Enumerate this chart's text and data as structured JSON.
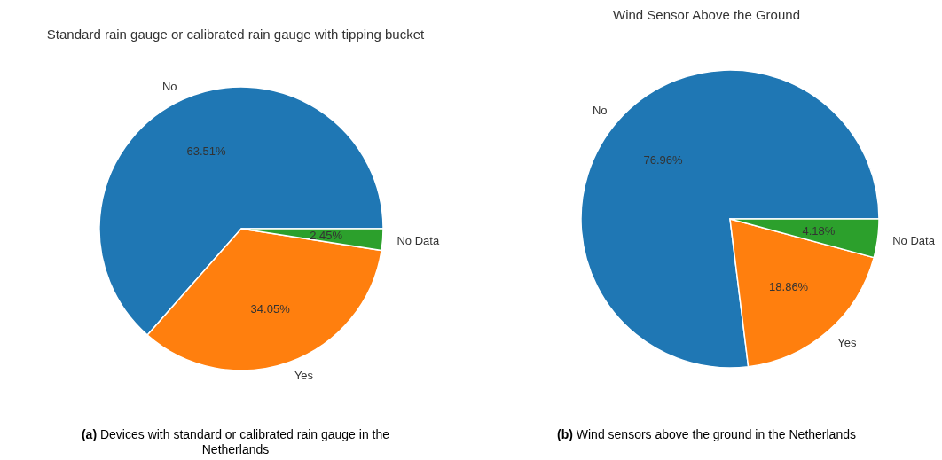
{
  "chart_data": [
    {
      "type": "pie",
      "title": "Standard rain gauge or calibrated rain gauge with tipping bucket",
      "categories": [
        "No",
        "Yes",
        "No Data"
      ],
      "values": [
        63.51,
        34.05,
        2.45
      ],
      "colors": [
        "#1f77b4",
        "#ff7f0e",
        "#2ca02c"
      ],
      "value_labels": [
        "63.51%",
        "34.05%",
        "2.45%"
      ],
      "legend": false,
      "annotations": [
        "(a) Devices with standard or calibrated rain gauge in the Netherlands"
      ]
    },
    {
      "type": "pie",
      "title": "Wind Sensor Above the Ground",
      "categories": [
        "No",
        "Yes",
        "No Data"
      ],
      "values": [
        76.96,
        18.86,
        4.18
      ],
      "colors": [
        "#1f77b4",
        "#ff7f0e",
        "#2ca02c"
      ],
      "value_labels": [
        "76.96%",
        "18.86%",
        "4.18%"
      ],
      "legend": false,
      "annotations": [
        "(b) Wind sensors above the ground in the Netherlands"
      ]
    }
  ]
}
